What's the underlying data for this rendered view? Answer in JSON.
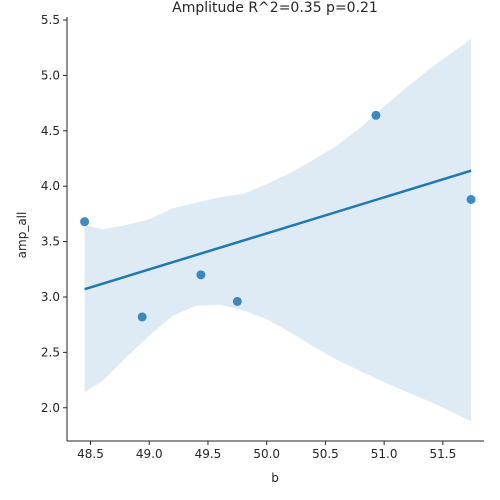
{
  "chart_data": {
    "type": "scatter",
    "title": "Amplitude R^2=0.35  p=0.21",
    "xlabel": "b",
    "ylabel": "amp_all",
    "xlim": [
      48.3,
      51.85
    ],
    "ylim": [
      1.7,
      5.5
    ],
    "xticks": [
      "48.5",
      "49.0",
      "49.5",
      "50.0",
      "50.5",
      "51.0",
      "51.5"
    ],
    "yticks": [
      "2.0",
      "2.5",
      "3.0",
      "3.5",
      "4.0",
      "4.5",
      "5.0",
      "5.5"
    ],
    "grid": false,
    "points": [
      {
        "x": 48.45,
        "y": 3.68
      },
      {
        "x": 48.94,
        "y": 2.82
      },
      {
        "x": 49.44,
        "y": 3.2
      },
      {
        "x": 49.75,
        "y": 2.96
      },
      {
        "x": 50.93,
        "y": 4.64
      },
      {
        "x": 51.74,
        "y": 3.88
      }
    ],
    "regression_line": {
      "x": [
        48.45,
        51.74
      ],
      "y": [
        3.07,
        4.14
      ]
    },
    "confidence_band": {
      "x": [
        48.45,
        48.6,
        48.8,
        49.0,
        49.2,
        49.4,
        49.6,
        49.8,
        50.0,
        50.2,
        50.4,
        50.6,
        50.8,
        51.0,
        51.2,
        51.4,
        51.6,
        51.74
      ],
      "upper": [
        3.65,
        3.61,
        3.65,
        3.7,
        3.8,
        3.85,
        3.9,
        3.93,
        4.02,
        4.12,
        4.24,
        4.37,
        4.53,
        4.72,
        4.9,
        5.07,
        5.22,
        5.33
      ],
      "lower": [
        2.14,
        2.24,
        2.45,
        2.65,
        2.83,
        2.92,
        2.93,
        2.88,
        2.8,
        2.68,
        2.55,
        2.43,
        2.33,
        2.23,
        2.14,
        2.05,
        1.95,
        1.88
      ]
    },
    "colors": {
      "points": "#1f77b4",
      "line": "#1f77b4",
      "band": "#1f77b4",
      "axis": "#262626"
    }
  }
}
